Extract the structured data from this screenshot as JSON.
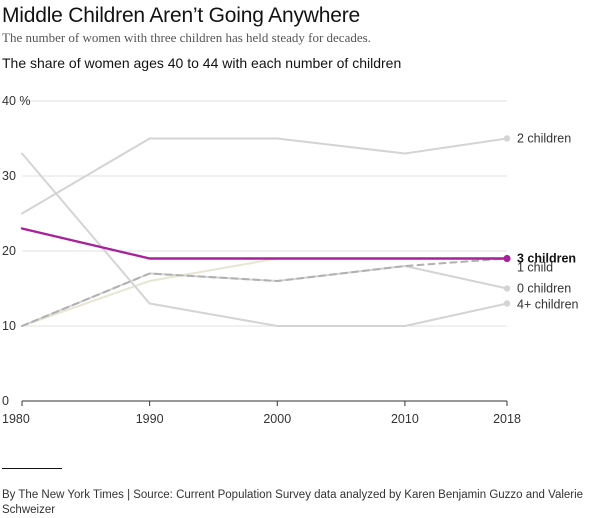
{
  "header": {
    "headline": "Middle Children Aren’t Going Anywhere",
    "subhead": "The number of women with three children has held steady for decades."
  },
  "footer": {
    "credit": "By The New York Times | Source: Current Population Survey data analyzed by Karen Benjamin Guzzo and Valerie Schweizer"
  },
  "colors": {
    "highlight": "#a7229a",
    "muted": "#d4d4d4",
    "one_child": "#e7e6d4",
    "dashed": "#b0b0b0",
    "gridline": "#e2e2e2",
    "axis": "#333333"
  },
  "chart_data": {
    "type": "line",
    "title": "The share of women ages 40 to 44 with each number of children",
    "x": [
      1980,
      1990,
      2000,
      2010,
      2018
    ],
    "x_tick_labels": [
      "1980",
      "1990",
      "2000",
      "2010",
      "2018"
    ],
    "xlim": [
      1980,
      2018
    ],
    "ylim": [
      0,
      40
    ],
    "y_ticks": [
      0,
      10,
      20,
      30,
      40
    ],
    "y_tick_labels": [
      "0",
      "10",
      "20",
      "30",
      "40 %"
    ],
    "grid": true,
    "legend": "direct labels at right end of lines",
    "series": [
      {
        "name": "2 children",
        "values": [
          25,
          35,
          35,
          33,
          35
        ],
        "style": "solid",
        "color": "#d4d4d4",
        "highlight": false
      },
      {
        "name": "3 children",
        "values": [
          23,
          19,
          19,
          19,
          19
        ],
        "style": "solid",
        "color": "#a7229a",
        "highlight": true
      },
      {
        "name": "1 child",
        "values": [
          10,
          16,
          19,
          19,
          19
        ],
        "style": "solid",
        "color": "#e7e6d4",
        "highlight": false
      },
      {
        "name": "0 children",
        "values": [
          10,
          17,
          16,
          18,
          15
        ],
        "style": "solid",
        "color": "#d4d4d4",
        "highlight": false
      },
      {
        "name": "4+ children",
        "values": [
          33,
          13,
          10,
          10,
          13
        ],
        "style": "solid",
        "color": "#d4d4d4",
        "highlight": false
      },
      {
        "name": "",
        "values": [
          10,
          17,
          16,
          18,
          19
        ],
        "style": "dashed",
        "color": "#b0b0b0",
        "highlight": false
      }
    ]
  }
}
